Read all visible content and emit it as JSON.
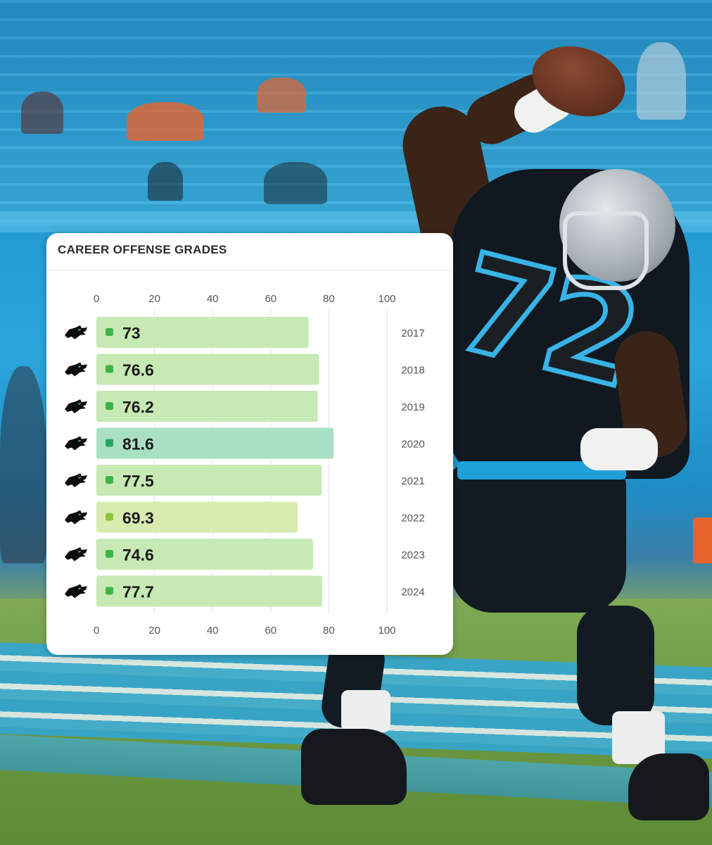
{
  "card": {
    "title": "CAREER OFFENSE GRADES"
  },
  "background": {
    "jersey_number": "72"
  },
  "colors": {
    "bar_mid": "#c7e9b4",
    "bar_high": "#a9e0c3",
    "bar_low": "#d9ecb0",
    "dot_mid": "#3cb44b",
    "dot_high": "#26a560",
    "dot_low": "#8cc63f",
    "team_icon": "#0b0b0b"
  },
  "chart_data": {
    "type": "bar",
    "orientation": "horizontal",
    "title": "CAREER OFFENSE GRADES",
    "xlim": [
      0,
      100
    ],
    "x_ticks": [
      0,
      20,
      40,
      60,
      80,
      100
    ],
    "tick_position": "top and bottom",
    "grid": true,
    "row_icon": "panthers-logo-icon",
    "categories": [
      "2017",
      "2018",
      "2019",
      "2020",
      "2021",
      "2022",
      "2023",
      "2024"
    ],
    "values": [
      73,
      76.6,
      76.2,
      81.6,
      77.5,
      69.3,
      74.6,
      77.7
    ],
    "value_labels": [
      "73",
      "76.6",
      "76.2",
      "81.6",
      "77.5",
      "69.3",
      "74.6",
      "77.7"
    ]
  }
}
